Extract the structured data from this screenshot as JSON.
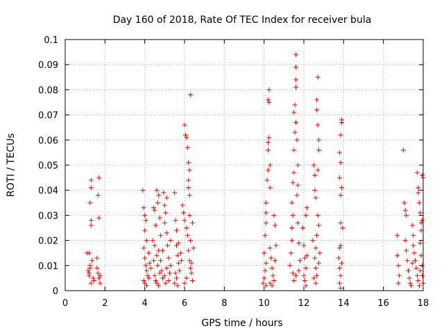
{
  "chart_data": {
    "type": "scatter",
    "title": "Day 160 of 2018, Rate Of TEC Index for receiver bula",
    "xlabel": "GPS time / hours",
    "ylabel": "ROTI / TECUs",
    "xlim": [
      0,
      18
    ],
    "ylim": [
      0,
      0.1
    ],
    "xticks": [
      0,
      2,
      4,
      6,
      8,
      10,
      12,
      14,
      16,
      18
    ],
    "yticks": [
      0,
      0.01,
      0.02,
      0.03,
      0.04,
      0.05,
      0.06,
      0.07,
      0.08,
      0.09,
      0.1
    ],
    "xtick_labels": [
      "0",
      "2",
      "4",
      "6",
      "8",
      "10",
      "12",
      "14",
      "16",
      "18"
    ],
    "ytick_labels": [
      "0",
      "0.01",
      "0.02",
      "0.03",
      "0.04",
      "0.05",
      "0.06",
      "0.07",
      "0.08",
      "0.09",
      "0.1"
    ],
    "grid": true,
    "marker": "+",
    "color": "#ff0000",
    "series": [
      {
        "name": "ROTI",
        "points": [
          [
            1.1,
            0.015
          ],
          [
            1.15,
            0.008
          ],
          [
            1.2,
            0.006
          ],
          [
            1.25,
            0.01
          ],
          [
            1.3,
            0.028
          ],
          [
            1.3,
            0.026
          ],
          [
            1.25,
            0.035
          ],
          [
            1.3,
            0.041
          ],
          [
            1.3,
            0.044
          ],
          [
            1.2,
            0.015
          ],
          [
            1.35,
            0.012
          ],
          [
            1.4,
            0.005
          ],
          [
            1.45,
            0.004
          ],
          [
            1.3,
            0.003
          ],
          [
            1.2,
            0.007
          ],
          [
            1.25,
            0.009
          ],
          [
            1.6,
            0.013
          ],
          [
            1.65,
            0.038
          ],
          [
            1.7,
            0.045
          ],
          [
            1.7,
            0.029
          ],
          [
            1.65,
            0.007
          ],
          [
            1.7,
            0.005
          ],
          [
            1.75,
            0.003
          ],
          [
            1.6,
            0.009
          ],
          [
            1.75,
            0.006
          ],
          [
            3.9,
            0.04
          ],
          [
            3.95,
            0.033
          ],
          [
            4.0,
            0.03
          ],
          [
            4.05,
            0.028
          ],
          [
            4.0,
            0.024
          ],
          [
            4.1,
            0.02
          ],
          [
            3.95,
            0.017
          ],
          [
            4.0,
            0.013
          ],
          [
            4.05,
            0.01
          ],
          [
            4.1,
            0.008
          ],
          [
            4.15,
            0.006
          ],
          [
            3.95,
            0.004
          ],
          [
            4.0,
            0.003
          ],
          [
            4.1,
            0.002
          ],
          [
            4.2,
            0.005
          ],
          [
            4.25,
            0.011
          ],
          [
            4.3,
            0.009
          ],
          [
            4.2,
            0.015
          ],
          [
            4.4,
            0.02
          ],
          [
            4.45,
            0.033
          ],
          [
            4.5,
            0.032
          ],
          [
            4.55,
            0.026
          ],
          [
            4.5,
            0.018
          ],
          [
            4.6,
            0.014
          ],
          [
            4.6,
            0.04
          ],
          [
            4.65,
            0.035
          ],
          [
            4.7,
            0.038
          ],
          [
            4.75,
            0.029
          ],
          [
            4.8,
            0.022
          ],
          [
            4.8,
            0.012
          ],
          [
            4.85,
            0.008
          ],
          [
            4.9,
            0.005
          ],
          [
            4.5,
            0.006
          ],
          [
            4.55,
            0.004
          ],
          [
            4.6,
            0.003
          ],
          [
            4.7,
            0.002
          ],
          [
            4.75,
            0.007
          ],
          [
            4.65,
            0.01
          ],
          [
            4.7,
            0.016
          ],
          [
            4.45,
            0.012
          ],
          [
            4.95,
            0.039
          ],
          [
            5.0,
            0.034
          ],
          [
            5.05,
            0.031
          ],
          [
            5.1,
            0.037
          ],
          [
            5.0,
            0.027
          ],
          [
            5.1,
            0.023
          ],
          [
            5.15,
            0.018
          ],
          [
            5.2,
            0.013
          ],
          [
            5.1,
            0.009
          ],
          [
            5.0,
            0.006
          ],
          [
            5.05,
            0.003
          ],
          [
            5.2,
            0.004
          ],
          [
            5.25,
            0.007
          ],
          [
            5.3,
            0.01
          ],
          [
            4.9,
            0.016
          ],
          [
            5.3,
            0.02
          ],
          [
            5.5,
            0.039
          ],
          [
            5.55,
            0.028
          ],
          [
            5.6,
            0.024
          ],
          [
            5.6,
            0.018
          ],
          [
            5.65,
            0.014
          ],
          [
            5.7,
            0.011
          ],
          [
            5.75,
            0.008
          ],
          [
            5.6,
            0.005
          ],
          [
            5.5,
            0.003
          ],
          [
            5.55,
            0.007
          ],
          [
            5.65,
            0.002
          ],
          [
            5.7,
            0.019
          ],
          [
            5.8,
            0.015
          ],
          [
            5.85,
            0.012
          ],
          [
            5.9,
            0.034
          ],
          [
            5.95,
            0.031
          ],
          [
            6.0,
            0.028
          ],
          [
            6.0,
            0.066
          ],
          [
            6.05,
            0.062
          ],
          [
            6.1,
            0.061
          ],
          [
            6.15,
            0.057
          ],
          [
            6.2,
            0.051
          ],
          [
            6.25,
            0.048
          ],
          [
            6.2,
            0.044
          ],
          [
            6.2,
            0.041
          ],
          [
            6.25,
            0.038
          ],
          [
            6.3,
            0.078
          ],
          [
            6.25,
            0.03
          ],
          [
            6.1,
            0.025
          ],
          [
            6.15,
            0.022
          ],
          [
            6.2,
            0.016
          ],
          [
            6.25,
            0.012
          ],
          [
            6.3,
            0.009
          ],
          [
            6.35,
            0.007
          ],
          [
            6.4,
            0.004
          ],
          [
            6.1,
            0.005
          ],
          [
            6.0,
            0.003
          ],
          [
            6.3,
            0.02
          ],
          [
            6.4,
            0.027
          ],
          [
            6.45,
            0.017
          ],
          [
            6.35,
            0.011
          ],
          [
            9.95,
            0.003
          ],
          [
            10.0,
            0.005
          ],
          [
            10.05,
            0.008
          ],
          [
            10.1,
            0.011
          ],
          [
            10.0,
            0.015
          ],
          [
            10.05,
            0.022
          ],
          [
            10.1,
            0.027
          ],
          [
            10.1,
            0.031
          ],
          [
            10.1,
            0.035
          ],
          [
            10.15,
            0.044
          ],
          [
            10.2,
            0.048
          ],
          [
            10.2,
            0.056
          ],
          [
            10.2,
            0.059
          ],
          [
            10.25,
            0.061
          ],
          [
            10.2,
            0.076
          ],
          [
            10.25,
            0.08
          ],
          [
            10.25,
            0.075
          ],
          [
            10.3,
            0.05
          ],
          [
            10.3,
            0.041
          ],
          [
            10.3,
            0.017
          ],
          [
            10.35,
            0.013
          ],
          [
            10.4,
            0.009
          ],
          [
            10.45,
            0.006
          ],
          [
            10.5,
            0.004
          ],
          [
            10.4,
            0.002
          ],
          [
            10.3,
            0.003
          ],
          [
            10.1,
            0.002
          ],
          [
            10.5,
            0.03
          ],
          [
            10.55,
            0.026
          ],
          [
            10.6,
            0.018
          ],
          [
            10.55,
            0.012
          ],
          [
            11.3,
            0.01
          ],
          [
            11.35,
            0.015
          ],
          [
            11.4,
            0.02
          ],
          [
            11.4,
            0.025
          ],
          [
            11.45,
            0.03
          ],
          [
            11.4,
            0.035
          ],
          [
            11.45,
            0.043
          ],
          [
            11.5,
            0.047
          ],
          [
            11.5,
            0.056
          ],
          [
            11.55,
            0.063
          ],
          [
            11.6,
            0.067
          ],
          [
            11.5,
            0.071
          ],
          [
            11.55,
            0.074
          ],
          [
            11.6,
            0.081
          ],
          [
            11.6,
            0.084
          ],
          [
            11.6,
            0.089
          ],
          [
            11.6,
            0.094
          ],
          [
            11.65,
            0.06
          ],
          [
            11.7,
            0.05
          ],
          [
            11.7,
            0.042
          ],
          [
            11.65,
            0.038
          ],
          [
            11.7,
            0.027
          ],
          [
            11.75,
            0.019
          ],
          [
            11.8,
            0.012
          ],
          [
            11.75,
            0.008
          ],
          [
            11.6,
            0.006
          ],
          [
            11.5,
            0.004
          ],
          [
            11.45,
            0.007
          ],
          [
            11.95,
            0.025
          ],
          [
            12.0,
            0.018
          ],
          [
            12.05,
            0.013
          ],
          [
            12.1,
            0.009
          ],
          [
            12.0,
            0.006
          ],
          [
            12.05,
            0.004
          ],
          [
            12.1,
            0.002
          ],
          [
            12.15,
            0.033
          ],
          [
            12.1,
            0.03
          ],
          [
            12.15,
            0.014
          ],
          [
            12.5,
            0.05
          ],
          [
            12.55,
            0.046
          ],
          [
            12.55,
            0.04
          ],
          [
            12.6,
            0.037
          ],
          [
            12.65,
            0.076
          ],
          [
            12.65,
            0.072
          ],
          [
            12.7,
            0.085
          ],
          [
            12.7,
            0.066
          ],
          [
            12.75,
            0.06
          ],
          [
            12.75,
            0.056
          ],
          [
            12.7,
            0.048
          ],
          [
            12.7,
            0.03
          ],
          [
            12.75,
            0.026
          ],
          [
            12.65,
            0.022
          ],
          [
            12.6,
            0.017
          ],
          [
            12.55,
            0.013
          ],
          [
            12.6,
            0.009
          ],
          [
            12.65,
            0.006
          ],
          [
            12.6,
            0.003
          ],
          [
            12.5,
            0.005
          ],
          [
            12.75,
            0.011
          ],
          [
            12.8,
            0.015
          ],
          [
            12.45,
            0.02
          ],
          [
            13.75,
            0.013
          ],
          [
            13.8,
            0.009
          ],
          [
            13.85,
            0.006
          ],
          [
            13.8,
            0.003
          ],
          [
            13.85,
            0.001
          ],
          [
            13.8,
            0.017
          ],
          [
            13.85,
            0.018
          ],
          [
            13.85,
            0.027
          ],
          [
            13.85,
            0.038
          ],
          [
            13.8,
            0.045
          ],
          [
            13.85,
            0.051
          ],
          [
            13.8,
            0.055
          ],
          [
            13.85,
            0.062
          ],
          [
            13.9,
            0.067
          ],
          [
            13.9,
            0.068
          ],
          [
            13.9,
            0.041
          ],
          [
            13.95,
            0.025
          ],
          [
            13.9,
            0.011
          ],
          [
            16.7,
            0.014
          ],
          [
            16.75,
            0.01
          ],
          [
            16.8,
            0.006
          ],
          [
            16.75,
            0.003
          ],
          [
            16.7,
            0.022
          ],
          [
            17.0,
            0.056
          ],
          [
            17.05,
            0.035
          ],
          [
            17.1,
            0.032
          ],
          [
            17.15,
            0.03
          ],
          [
            17.1,
            0.02
          ],
          [
            17.15,
            0.016
          ],
          [
            17.2,
            0.012
          ],
          [
            17.25,
            0.008
          ],
          [
            17.3,
            0.005
          ],
          [
            17.35,
            0.003
          ],
          [
            17.4,
            0.002
          ],
          [
            17.45,
            0.026
          ],
          [
            17.5,
            0.022
          ],
          [
            17.5,
            0.018
          ],
          [
            17.55,
            0.015
          ],
          [
            17.6,
            0.012
          ],
          [
            17.65,
            0.009
          ],
          [
            17.7,
            0.006
          ],
          [
            17.75,
            0.004
          ],
          [
            17.8,
            0.002
          ],
          [
            17.45,
            0.011
          ],
          [
            17.7,
            0.047
          ],
          [
            17.75,
            0.041
          ],
          [
            17.75,
            0.039
          ],
          [
            17.8,
            0.035
          ],
          [
            17.85,
            0.031
          ],
          [
            17.9,
            0.027
          ],
          [
            17.9,
            0.024
          ],
          [
            17.95,
            0.028
          ],
          [
            17.95,
            0.046
          ],
          [
            18.0,
            0.045
          ],
          [
            17.85,
            0.019
          ],
          [
            17.9,
            0.014
          ],
          [
            17.95,
            0.01
          ],
          [
            17.95,
            0.006
          ],
          [
            18.0,
            0.003
          ],
          [
            17.85,
            0.008
          ]
        ]
      }
    ]
  }
}
